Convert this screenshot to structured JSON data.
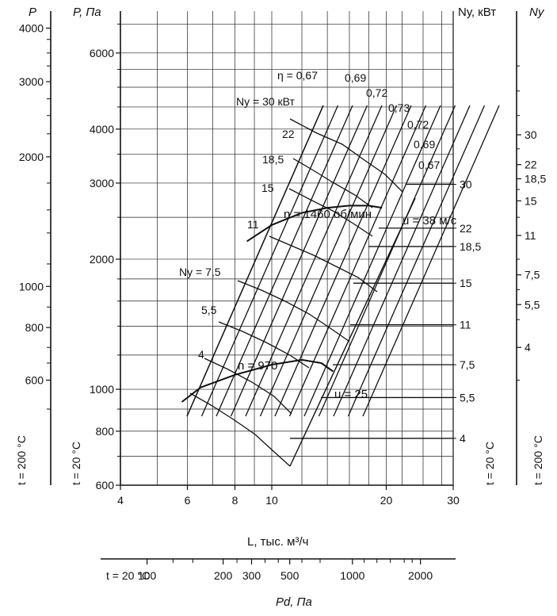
{
  "chart_data": {
    "type": "line",
    "x_scale": "log",
    "y_scale": "log",
    "xlim": [
      4,
      30
    ],
    "ylim": [
      600,
      7500
    ],
    "grid": true,
    "axis_labels": {
      "left_outer": "P",
      "left_inner": "P, Па",
      "right_inner": "Nу, кВт",
      "right_outer": "Nу",
      "x_main": "L, тыс. м³/ч",
      "x_bottom": "Pd, Па",
      "temp_left_outer": "t = 200 °C",
      "temp_left_inner": "t = 20 °C",
      "temp_right_inner": "t = 20 °C",
      "temp_right_outer": "t = 200 °C",
      "pd_temp": "t = 20 °C"
    },
    "x_ticks": [
      {
        "v": 4,
        "label": "4"
      },
      {
        "v": 6,
        "label": "6"
      },
      {
        "v": 8,
        "label": "8"
      },
      {
        "v": 10,
        "label": "10"
      },
      {
        "v": 20,
        "label": "20"
      },
      {
        "v": 30,
        "label": "30"
      }
    ],
    "y_ticks": [
      {
        "v": 600,
        "label": "600"
      },
      {
        "v": 800,
        "label": "800"
      },
      {
        "v": 1000,
        "label": "1000"
      },
      {
        "v": 2000,
        "label": "2000"
      },
      {
        "v": 3000,
        "label": "3000"
      },
      {
        "v": 4000,
        "label": "4000"
      },
      {
        "v": 6000,
        "label": "6000"
      }
    ],
    "left_outer_ticks": [
      {
        "v": 1050,
        "label": "600"
      },
      {
        "v": 1390,
        "label": "800"
      },
      {
        "v": 1730,
        "label": "1000"
      },
      {
        "v": 3450,
        "label": "2000"
      },
      {
        "v": 5150,
        "label": "3000"
      },
      {
        "v": 6850,
        "label": "4000"
      }
    ],
    "pd_ticks": [
      {
        "label": "100",
        "x": 4.7
      },
      {
        "label": "200",
        "x": 7.45
      },
      {
        "label": "300",
        "x": 8.85
      },
      {
        "label": "500",
        "x": 11.15
      },
      {
        "label": "1000",
        "x": 16.3
      },
      {
        "label": "2000",
        "x": 24.6
      }
    ],
    "power_right_inner": [
      {
        "label": "30",
        "y": 2980
      },
      {
        "label": "22",
        "y": 2360
      },
      {
        "label": "18,5",
        "y": 2140
      },
      {
        "label": "15",
        "y": 1760
      },
      {
        "label": "11",
        "y": 1410
      },
      {
        "label": "7,5",
        "y": 1140
      },
      {
        "label": "5,5",
        "y": 957
      },
      {
        "label": "4",
        "y": 770
      }
    ],
    "power_right_outer": [
      {
        "label": "30",
        "y": 3880
      },
      {
        "label": "22",
        "y": 3310
      },
      {
        "label": "18,5",
        "y": 3070
      },
      {
        "label": "15",
        "y": 2730
      },
      {
        "label": "11",
        "y": 2270
      },
      {
        "label": "7,5",
        "y": 1840
      },
      {
        "label": "5,5",
        "y": 1570
      },
      {
        "label": "4",
        "y": 1250
      }
    ],
    "curves": [
      {
        "name": "n = 1460 об/мин",
        "points": [
          [
            8.6,
            2200
          ],
          [
            10,
            2400
          ],
          [
            12,
            2560
          ],
          [
            14,
            2630
          ],
          [
            16,
            2660
          ],
          [
            18,
            2660
          ],
          [
            19.5,
            2630
          ]
        ]
      },
      {
        "name": "n = 970",
        "points": [
          [
            5.8,
            935
          ],
          [
            6.5,
            1010
          ],
          [
            8,
            1080
          ],
          [
            10,
            1140
          ],
          [
            12,
            1170
          ],
          [
            13.5,
            1150
          ],
          [
            14.5,
            1100
          ]
        ]
      }
    ],
    "curve_labels": {
      "n_high": "n = 1460 об/мин",
      "n_low": "n = 970",
      "u_high": "u = 38 м/с",
      "u_low": "u = 25"
    },
    "efficiency_labels": [
      "η = 0,67",
      "0,69",
      "0,72",
      "0,73",
      "0,72",
      "0,69",
      "0,67"
    ],
    "power_curve_labels": [
      "Nу = 30 кВт",
      "22",
      "18,5",
      "15",
      "11",
      "Nу = 7,5",
      "5,5",
      "4"
    ]
  },
  "colors": {
    "line": "#111111",
    "grid": "#222222",
    "background": "#ffffff"
  }
}
